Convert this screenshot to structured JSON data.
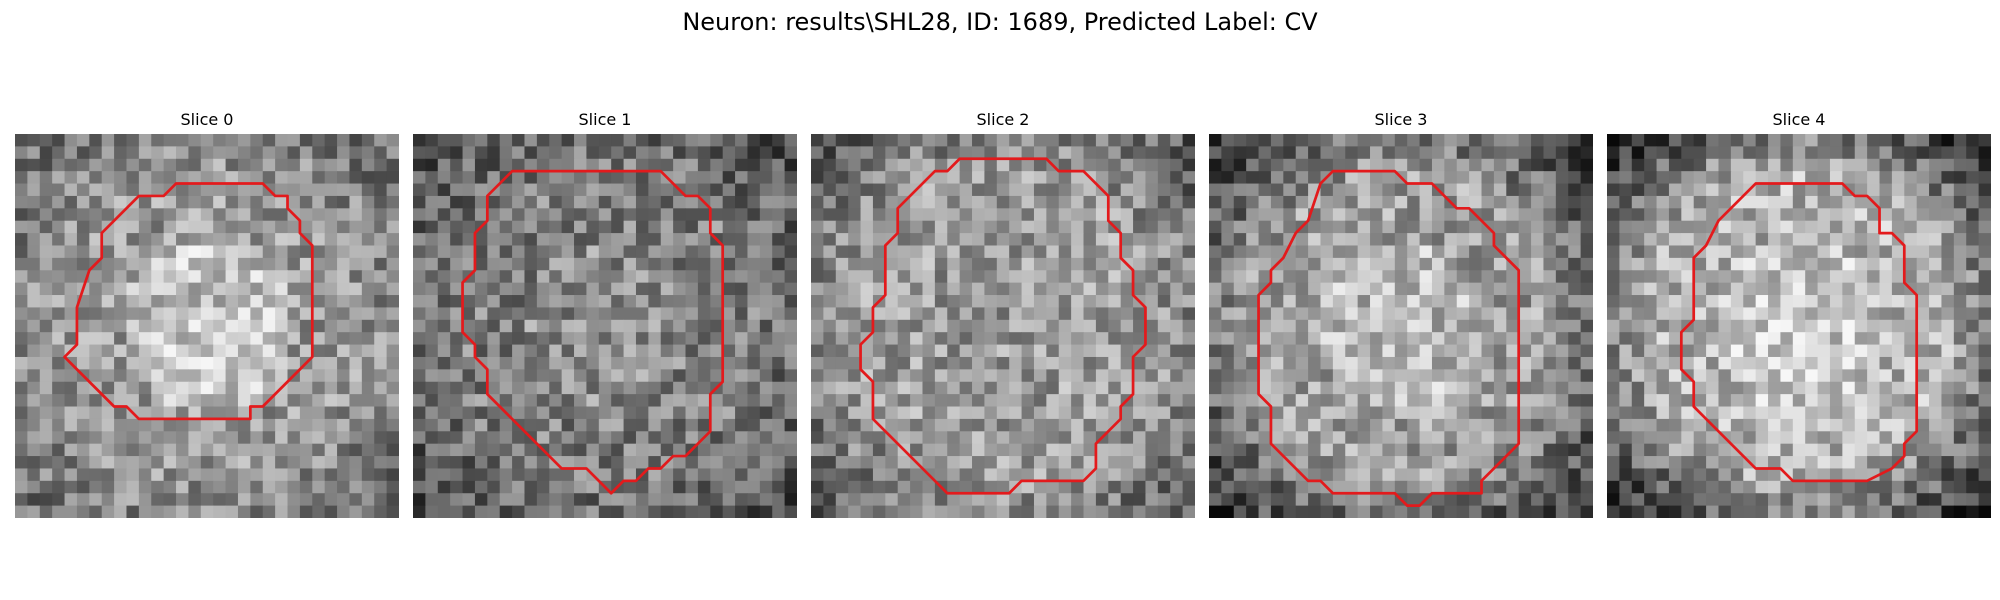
{
  "figure": {
    "title": "Neuron: results\\SHL28, ID: 1689, Predicted Label: CV"
  },
  "contour_color": "#e31a1c",
  "panels": [
    {
      "title": "Slice 0",
      "seed": 11,
      "bright": 0.76,
      "mid": 0.6,
      "edgeDark": 0.42,
      "contour": [
        [
          14,
          4
        ],
        [
          20,
          4
        ],
        [
          21,
          5
        ],
        [
          22,
          5
        ],
        [
          22,
          6
        ],
        [
          23,
          7
        ],
        [
          23,
          8
        ],
        [
          24,
          9
        ],
        [
          24,
          18
        ],
        [
          23,
          19
        ],
        [
          22,
          20
        ],
        [
          21,
          21
        ],
        [
          20,
          22
        ],
        [
          19,
          22
        ],
        [
          19,
          23
        ],
        [
          10,
          23
        ],
        [
          9,
          22
        ],
        [
          8,
          22
        ],
        [
          7,
          21
        ],
        [
          6,
          20
        ],
        [
          5,
          19
        ],
        [
          4,
          18
        ],
        [
          5,
          17
        ],
        [
          5,
          14
        ],
        [
          6,
          11
        ],
        [
          7,
          10
        ],
        [
          7,
          8
        ],
        [
          8,
          7
        ],
        [
          9,
          6
        ],
        [
          10,
          5
        ],
        [
          12,
          5
        ],
        [
          13,
          4
        ]
      ]
    },
    {
      "title": "Slice 1",
      "seed": 23,
      "bright": 0.55,
      "mid": 0.5,
      "edgeDark": 0.3,
      "contour": [
        [
          8,
          3
        ],
        [
          20,
          3
        ],
        [
          22,
          5
        ],
        [
          23,
          5
        ],
        [
          24,
          6
        ],
        [
          24,
          8
        ],
        [
          25,
          9
        ],
        [
          25,
          20
        ],
        [
          24,
          21
        ],
        [
          24,
          24
        ],
        [
          23,
          25
        ],
        [
          22,
          26
        ],
        [
          21,
          26
        ],
        [
          20,
          27
        ],
        [
          19,
          27
        ],
        [
          18,
          28
        ],
        [
          17,
          28
        ],
        [
          16,
          29
        ],
        [
          14,
          27
        ],
        [
          12,
          27
        ],
        [
          11,
          26
        ],
        [
          10,
          25
        ],
        [
          9,
          24
        ],
        [
          8,
          23
        ],
        [
          7,
          22
        ],
        [
          6,
          21
        ],
        [
          6,
          19
        ],
        [
          5,
          18
        ],
        [
          5,
          17
        ],
        [
          4,
          16
        ],
        [
          4,
          12
        ],
        [
          5,
          11
        ],
        [
          5,
          8
        ],
        [
          6,
          7
        ],
        [
          6,
          5
        ],
        [
          7,
          4
        ]
      ]
    },
    {
      "title": "Slice 2",
      "seed": 37,
      "bright": 0.6,
      "mid": 0.62,
      "edgeDark": 0.35,
      "contour": [
        [
          12,
          2
        ],
        [
          19,
          2
        ],
        [
          20,
          3
        ],
        [
          22,
          3
        ],
        [
          23,
          4
        ],
        [
          24,
          5
        ],
        [
          24,
          7
        ],
        [
          25,
          8
        ],
        [
          25,
          10
        ],
        [
          26,
          11
        ],
        [
          26,
          13
        ],
        [
          27,
          14
        ],
        [
          27,
          17
        ],
        [
          26,
          18
        ],
        [
          26,
          21
        ],
        [
          25,
          22
        ],
        [
          25,
          23
        ],
        [
          24,
          24
        ],
        [
          23,
          25
        ],
        [
          23,
          27
        ],
        [
          22,
          28
        ],
        [
          17,
          28
        ],
        [
          16,
          29
        ],
        [
          11,
          29
        ],
        [
          10,
          28
        ],
        [
          9,
          27
        ],
        [
          8,
          26
        ],
        [
          7,
          25
        ],
        [
          6,
          24
        ],
        [
          5,
          23
        ],
        [
          5,
          20
        ],
        [
          4,
          19
        ],
        [
          4,
          17
        ],
        [
          5,
          16
        ],
        [
          5,
          14
        ],
        [
          6,
          13
        ],
        [
          6,
          9
        ],
        [
          7,
          8
        ],
        [
          7,
          6
        ],
        [
          8,
          5
        ],
        [
          9,
          4
        ],
        [
          10,
          3
        ],
        [
          11,
          3
        ]
      ]
    },
    {
      "title": "Slice 3",
      "seed": 51,
      "bright": 0.72,
      "mid": 0.62,
      "edgeDark": 0.2,
      "contour": [
        [
          10,
          3
        ],
        [
          15,
          3
        ],
        [
          16,
          4
        ],
        [
          18,
          4
        ],
        [
          19,
          5
        ],
        [
          20,
          6
        ],
        [
          21,
          6
        ],
        [
          22,
          7
        ],
        [
          23,
          8
        ],
        [
          23,
          9
        ],
        [
          24,
          10
        ],
        [
          25,
          11
        ],
        [
          25,
          25
        ],
        [
          24,
          26
        ],
        [
          23,
          27
        ],
        [
          22,
          28
        ],
        [
          22,
          29
        ],
        [
          18,
          29
        ],
        [
          17,
          30
        ],
        [
          16,
          30
        ],
        [
          15,
          29
        ],
        [
          10,
          29
        ],
        [
          9,
          28
        ],
        [
          8,
          28
        ],
        [
          7,
          27
        ],
        [
          6,
          26
        ],
        [
          5,
          25
        ],
        [
          5,
          22
        ],
        [
          4,
          21
        ],
        [
          4,
          13
        ],
        [
          5,
          12
        ],
        [
          5,
          11
        ],
        [
          6,
          10
        ],
        [
          7,
          8
        ],
        [
          8,
          7
        ],
        [
          9,
          4
        ]
      ]
    },
    {
      "title": "Slice 4",
      "seed": 67,
      "bright": 0.78,
      "mid": 0.7,
      "edgeDark": 0.15,
      "contour": [
        [
          12,
          4
        ],
        [
          19,
          4
        ],
        [
          20,
          5
        ],
        [
          21,
          5
        ],
        [
          22,
          6
        ],
        [
          22,
          8
        ],
        [
          23,
          8
        ],
        [
          24,
          9
        ],
        [
          24,
          12
        ],
        [
          25,
          13
        ],
        [
          25,
          24
        ],
        [
          24,
          25
        ],
        [
          24,
          26
        ],
        [
          23,
          27
        ],
        [
          21,
          28
        ],
        [
          15,
          28
        ],
        [
          14,
          27
        ],
        [
          12,
          27
        ],
        [
          11,
          26
        ],
        [
          10,
          25
        ],
        [
          8,
          23
        ],
        [
          7,
          22
        ],
        [
          7,
          20
        ],
        [
          6,
          19
        ],
        [
          6,
          16
        ],
        [
          7,
          15
        ],
        [
          7,
          10
        ],
        [
          8,
          9
        ],
        [
          9,
          7
        ],
        [
          10,
          6
        ],
        [
          11,
          5
        ]
      ]
    }
  ]
}
